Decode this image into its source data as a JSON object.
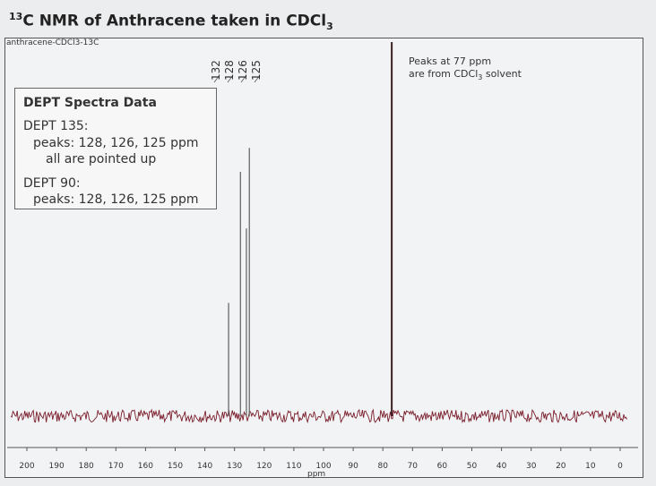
{
  "page": {
    "title_prefix": "13",
    "title_main": "C NMR of Anthracene taken in CDCl",
    "title_sub": "3",
    "spectrum_name": "anthracene-CDCl3-13C"
  },
  "dept": {
    "title": "DEPT Spectra Data",
    "lines": [
      "DEPT 135:",
      "peaks: 128, 126, 125 ppm",
      "all are pointed up",
      "DEPT 90:",
      "peaks: 128, 126, 125 ppm"
    ]
  },
  "solvent_note": {
    "line1": "Peaks at 77 ppm",
    "line2_prefix": "are from CDCl",
    "line2_sub": "3",
    "line2_suffix": " solvent"
  },
  "peak_labels": [
    "132",
    "128",
    "126",
    "125"
  ],
  "colors": {
    "baseline": "#7a1d2b",
    "peaks": "#6a6a6a",
    "text": "#333333",
    "background": "#ecedef"
  },
  "chart_data": {
    "type": "line",
    "xlabel": "ppm",
    "xlim": [
      200,
      0
    ],
    "x_reversed": true,
    "xticks": [
      200,
      190,
      180,
      170,
      160,
      150,
      140,
      130,
      120,
      110,
      100,
      90,
      80,
      70,
      60,
      50,
      40,
      30,
      20,
      10,
      0
    ],
    "peaks": [
      {
        "ppm": 132,
        "relative_height": 0.38
      },
      {
        "ppm": 128,
        "relative_height": 0.82
      },
      {
        "ppm": 126,
        "relative_height": 0.63
      },
      {
        "ppm": 125,
        "relative_height": 0.9
      },
      {
        "ppm": 77,
        "relative_height": 1.0
      }
    ],
    "grid": false
  }
}
